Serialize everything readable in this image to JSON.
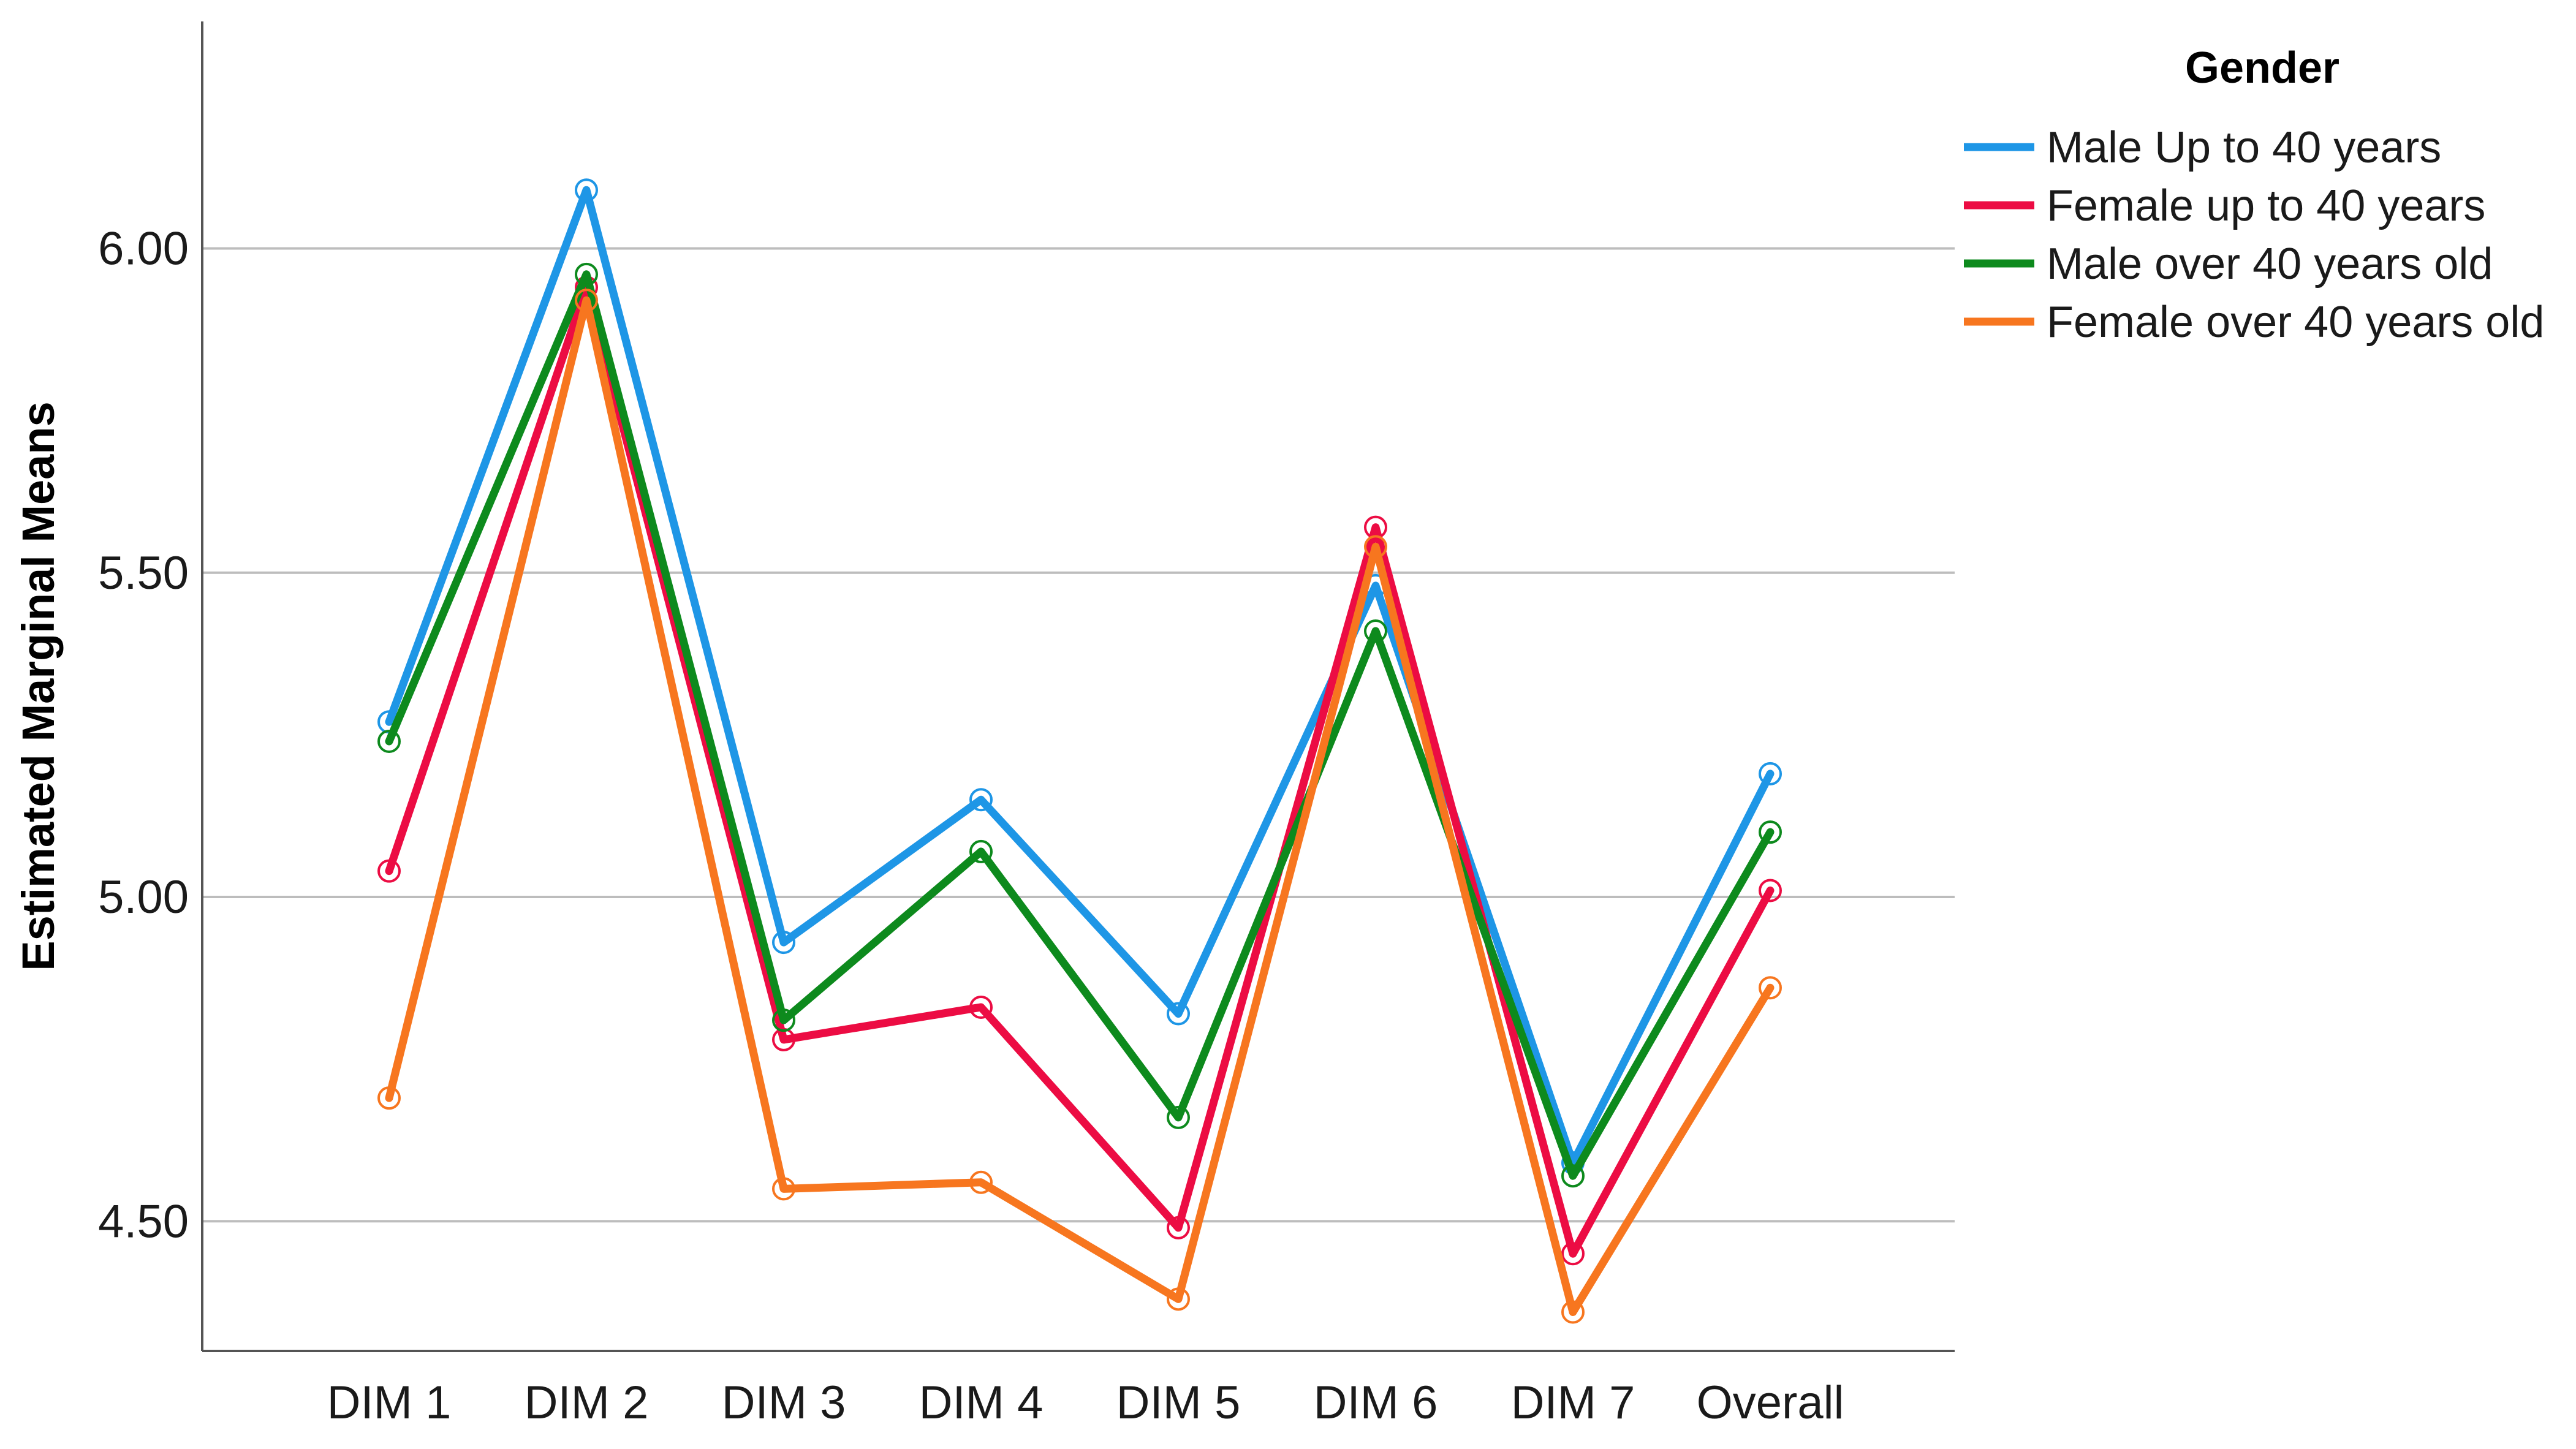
{
  "chart_data": {
    "type": "line",
    "title": "",
    "xlabel": "",
    "ylabel": "Estimated Marginal Means",
    "ylim": [
      4.3,
      6.35
    ],
    "yticks": [
      "4.50",
      "5.00",
      "5.50",
      "6.00"
    ],
    "ytick_values": [
      4.5,
      5.0,
      5.5,
      6.0
    ],
    "grid": "horizontal",
    "legend_title": "Gender",
    "legend_position": "top-right",
    "categories": [
      "DIM 1",
      "DIM 2",
      "DIM 3",
      "DIM 4",
      "DIM 5",
      "DIM 6",
      "DIM 7",
      "Overall"
    ],
    "series": [
      {
        "name": "Male Up to 40 years",
        "color": "#1E96E6",
        "values": [
          5.27,
          6.09,
          4.93,
          5.15,
          4.82,
          5.48,
          4.59,
          5.19
        ]
      },
      {
        "name": "Female up to 40 years",
        "color": "#EC0C43",
        "values": [
          5.04,
          5.94,
          4.78,
          4.83,
          4.49,
          5.57,
          4.45,
          5.01
        ]
      },
      {
        "name": "Male over 40 years old",
        "color": "#0D8A1D",
        "values": [
          5.24,
          5.96,
          4.81,
          5.07,
          4.66,
          5.41,
          4.57,
          5.1
        ]
      },
      {
        "name": "Female over 40 years old",
        "color": "#F7761F",
        "values": [
          4.69,
          5.92,
          4.55,
          4.56,
          4.38,
          5.54,
          4.36,
          4.86
        ]
      }
    ]
  }
}
